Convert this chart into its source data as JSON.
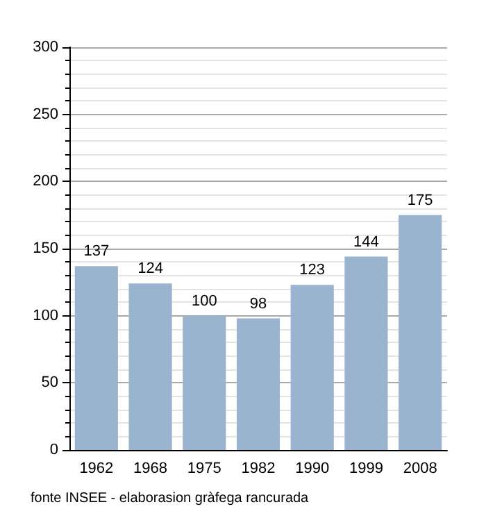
{
  "chart_data": {
    "type": "bar",
    "categories": [
      "1962",
      "1968",
      "1975",
      "1982",
      "1990",
      "1999",
      "2008"
    ],
    "values": [
      137,
      124,
      100,
      98,
      123,
      144,
      175
    ],
    "color": "#9ab3cf",
    "ylim": [
      0,
      300
    ],
    "yticks": [
      0,
      50,
      100,
      150,
      200,
      250,
      300
    ],
    "grid": "y",
    "data_labels": true,
    "annotations": [
      "fonte INSEE - elaborasion gràfega rancurada"
    ]
  }
}
